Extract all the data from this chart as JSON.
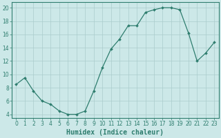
{
  "x": [
    0,
    1,
    2,
    3,
    4,
    5,
    6,
    7,
    8,
    9,
    10,
    11,
    12,
    13,
    14,
    15,
    16,
    17,
    18,
    19,
    20,
    21,
    22,
    23
  ],
  "y": [
    8.5,
    9.5,
    7.5,
    6,
    5.5,
    4.5,
    4,
    4,
    4.5,
    7.5,
    11,
    13.8,
    15.3,
    17.3,
    17.3,
    19.3,
    19.7,
    20,
    20,
    19.7,
    16.2,
    12,
    13.2,
    14.8
  ],
  "line_color": "#2e7d6e",
  "marker": "D",
  "marker_size": 2.0,
  "background_color": "#cce8e8",
  "grid_color": "#aacccc",
  "title": "",
  "xlabel": "Humidex (Indice chaleur)",
  "ylabel": "",
  "xlim": [
    -0.5,
    23.5
  ],
  "ylim": [
    3.5,
    20.8
  ],
  "yticks": [
    4,
    6,
    8,
    10,
    12,
    14,
    16,
    18,
    20
  ],
  "xtick_labels": [
    "0",
    "1",
    "2",
    "3",
    "4",
    "5",
    "6",
    "7",
    "8",
    "9",
    "10",
    "11",
    "12",
    "13",
    "14",
    "15",
    "16",
    "17",
    "18",
    "19",
    "20",
    "21",
    "22",
    "23"
  ],
  "tick_fontsize": 5.5,
  "ylabel_fontsize": 5.5,
  "xlabel_fontsize": 7,
  "tick_color": "#2e7d6e",
  "label_color": "#2e7d6e",
  "spine_color": "#2e7d6e"
}
